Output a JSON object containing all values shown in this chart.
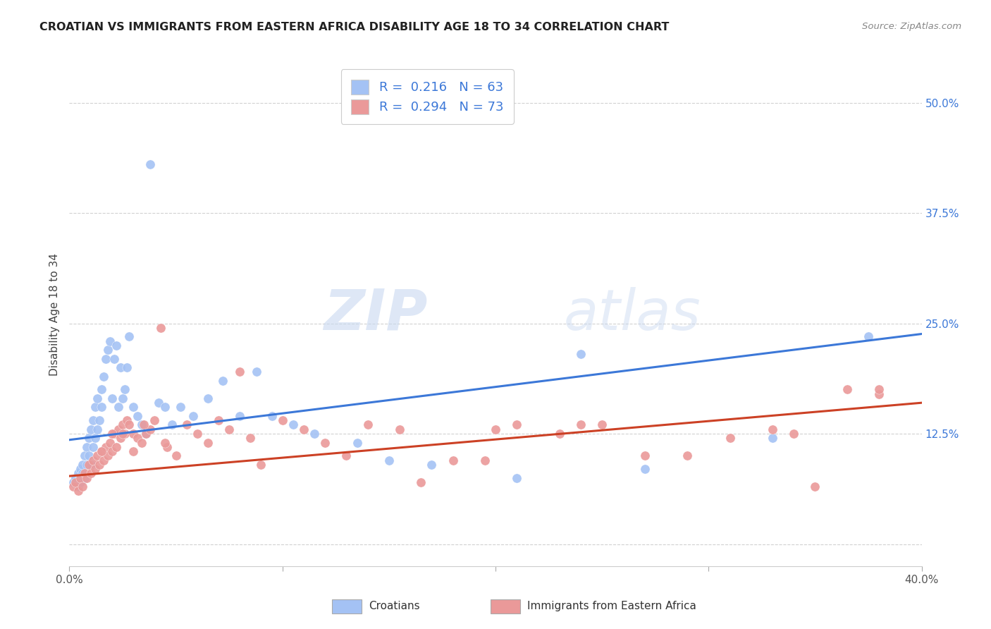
{
  "title": "CROATIAN VS IMMIGRANTS FROM EASTERN AFRICA DISABILITY AGE 18 TO 34 CORRELATION CHART",
  "source": "Source: ZipAtlas.com",
  "ylabel": "Disability Age 18 to 34",
  "ytick_labels": [
    "",
    "12.5%",
    "25.0%",
    "37.5%",
    "50.0%"
  ],
  "ytick_values": [
    0.0,
    0.125,
    0.25,
    0.375,
    0.5
  ],
  "xrange": [
    0,
    0.4
  ],
  "yrange": [
    -0.025,
    0.545
  ],
  "blue_R": 0.216,
  "blue_N": 63,
  "pink_R": 0.294,
  "pink_N": 73,
  "blue_color": "#a4c2f4",
  "pink_color": "#ea9999",
  "blue_line_color": "#3c78d8",
  "pink_line_color": "#cc4125",
  "legend_label_blue": "Croatians",
  "legend_label_pink": "Immigrants from Eastern Africa",
  "watermark_zip": "ZIP",
  "watermark_atlas": "atlas",
  "blue_line_x": [
    0.0,
    0.4
  ],
  "blue_line_y": [
    0.118,
    0.238
  ],
  "pink_line_x": [
    0.0,
    0.4
  ],
  "pink_line_y": [
    0.077,
    0.16
  ],
  "blue_scatter_x": [
    0.002,
    0.003,
    0.004,
    0.004,
    0.005,
    0.005,
    0.006,
    0.006,
    0.007,
    0.007,
    0.008,
    0.008,
    0.009,
    0.009,
    0.01,
    0.01,
    0.011,
    0.011,
    0.012,
    0.012,
    0.013,
    0.013,
    0.014,
    0.015,
    0.015,
    0.016,
    0.017,
    0.018,
    0.019,
    0.02,
    0.021,
    0.022,
    0.023,
    0.024,
    0.025,
    0.026,
    0.027,
    0.028,
    0.03,
    0.032,
    0.034,
    0.036,
    0.038,
    0.042,
    0.045,
    0.048,
    0.052,
    0.058,
    0.065,
    0.072,
    0.08,
    0.088,
    0.095,
    0.105,
    0.115,
    0.135,
    0.15,
    0.17,
    0.21,
    0.24,
    0.27,
    0.33,
    0.375
  ],
  "blue_scatter_y": [
    0.07,
    0.075,
    0.065,
    0.08,
    0.07,
    0.085,
    0.08,
    0.09,
    0.075,
    0.1,
    0.09,
    0.11,
    0.1,
    0.12,
    0.09,
    0.13,
    0.11,
    0.14,
    0.12,
    0.155,
    0.13,
    0.165,
    0.14,
    0.175,
    0.155,
    0.19,
    0.21,
    0.22,
    0.23,
    0.165,
    0.21,
    0.225,
    0.155,
    0.2,
    0.165,
    0.175,
    0.2,
    0.235,
    0.155,
    0.145,
    0.135,
    0.125,
    0.43,
    0.16,
    0.155,
    0.135,
    0.155,
    0.145,
    0.165,
    0.185,
    0.145,
    0.195,
    0.145,
    0.135,
    0.125,
    0.115,
    0.095,
    0.09,
    0.075,
    0.215,
    0.085,
    0.12,
    0.235
  ],
  "pink_scatter_x": [
    0.002,
    0.003,
    0.004,
    0.005,
    0.006,
    0.007,
    0.008,
    0.009,
    0.01,
    0.011,
    0.012,
    0.013,
    0.014,
    0.015,
    0.016,
    0.017,
    0.018,
    0.019,
    0.02,
    0.021,
    0.022,
    0.023,
    0.024,
    0.025,
    0.026,
    0.027,
    0.028,
    0.03,
    0.032,
    0.034,
    0.036,
    0.038,
    0.04,
    0.043,
    0.046,
    0.05,
    0.055,
    0.06,
    0.065,
    0.07,
    0.075,
    0.08,
    0.085,
    0.09,
    0.1,
    0.11,
    0.12,
    0.13,
    0.14,
    0.155,
    0.165,
    0.18,
    0.195,
    0.21,
    0.23,
    0.25,
    0.27,
    0.29,
    0.31,
    0.33,
    0.35,
    0.365,
    0.38,
    0.02,
    0.025,
    0.03,
    0.035,
    0.015,
    0.045,
    0.2,
    0.24,
    0.34,
    0.38
  ],
  "pink_scatter_y": [
    0.065,
    0.07,
    0.06,
    0.075,
    0.065,
    0.08,
    0.075,
    0.09,
    0.08,
    0.095,
    0.085,
    0.1,
    0.09,
    0.105,
    0.095,
    0.11,
    0.1,
    0.115,
    0.105,
    0.125,
    0.11,
    0.13,
    0.12,
    0.135,
    0.125,
    0.14,
    0.135,
    0.125,
    0.12,
    0.115,
    0.125,
    0.13,
    0.14,
    0.245,
    0.11,
    0.1,
    0.135,
    0.125,
    0.115,
    0.14,
    0.13,
    0.195,
    0.12,
    0.09,
    0.14,
    0.13,
    0.115,
    0.1,
    0.135,
    0.13,
    0.07,
    0.095,
    0.095,
    0.135,
    0.125,
    0.135,
    0.1,
    0.1,
    0.12,
    0.13,
    0.065,
    0.175,
    0.17,
    0.125,
    0.125,
    0.105,
    0.135,
    0.105,
    0.115,
    0.13,
    0.135,
    0.125,
    0.175
  ]
}
